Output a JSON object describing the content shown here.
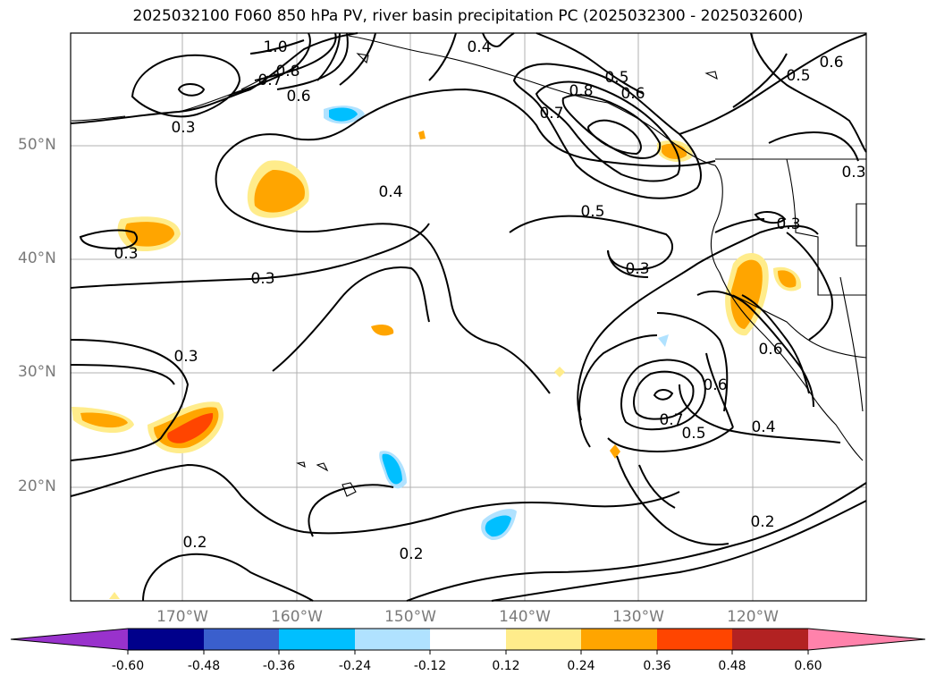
{
  "title": "2025032100 F060 850 hPa PV, river basin precipitation PC (2025032300 - 2025032600)",
  "axes": {
    "lat_ticks": [
      "50°N",
      "40°N",
      "30°N",
      "20°N"
    ],
    "lon_ticks": [
      "170°W",
      "160°W",
      "150°W",
      "140°W",
      "130°W",
      "120°W"
    ]
  },
  "contour_labels": [
    "1.0",
    "0.8",
    "0.7",
    "0.6",
    "0.3",
    "0.4",
    "0.8",
    "0.7",
    "0.6",
    "0.5",
    "0.6",
    "0.5",
    "0.3",
    "0.3",
    "0.4",
    "0.5",
    "0.3",
    "0.3",
    "0.3",
    "0.3",
    "0.6",
    "0.7",
    "0.6",
    "0.5",
    "0.4",
    "0.2",
    "0.2",
    "0.2"
  ],
  "colorbar": {
    "tick_labels": [
      "-0.60",
      "-0.48",
      "-0.36",
      "-0.24",
      "-0.12",
      "0.12",
      "0.24",
      "0.36",
      "0.48",
      "0.60"
    ],
    "colors": [
      "#9932cc",
      "#00008b",
      "#3a5fcd",
      "#00bfff",
      "#b0e2ff",
      "#ffffff",
      "#ffec8b",
      "#ffa500",
      "#ff4500",
      "#b22222",
      "#ff82ab"
    ]
  }
}
